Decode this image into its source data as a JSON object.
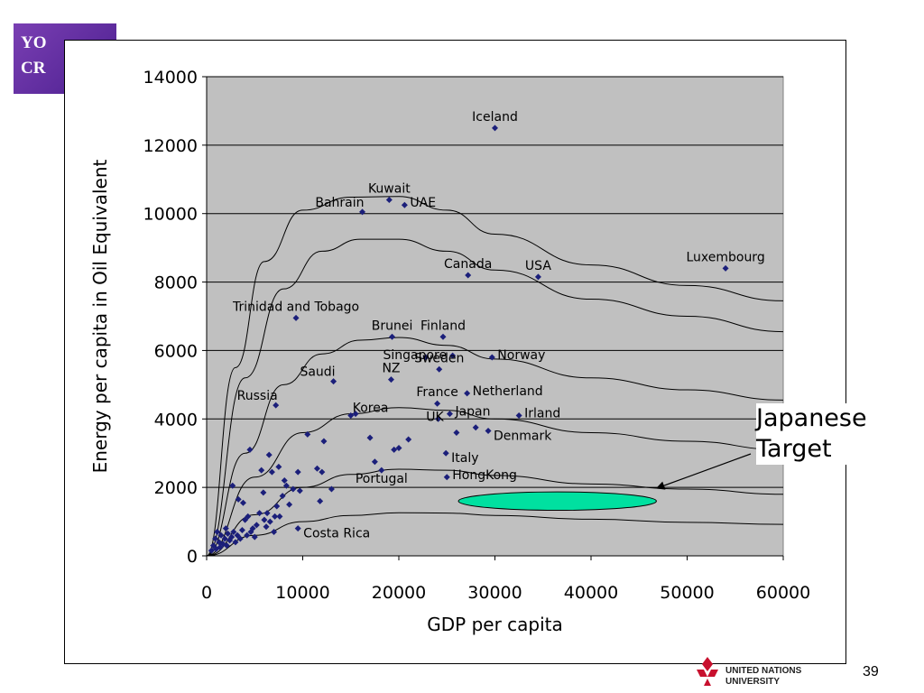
{
  "slide": {
    "badge_lines": [
      "YO",
      "CR"
    ],
    "page_number": "39",
    "logo_text_lines": [
      "UNITED NATIONS",
      "UNIVERSITY"
    ]
  },
  "callout": {
    "lines": [
      "Japanese",
      "Target"
    ]
  },
  "chart_data": {
    "type": "scatter",
    "xlabel": "GDP per capita",
    "ylabel": "Energy per capita in Oil Equivalent",
    "xlim": [
      0,
      60000
    ],
    "ylim": [
      0,
      14000
    ],
    "xticks": [
      "0",
      "10000",
      "20000",
      "30000",
      "40000",
      "50000",
      "60000"
    ],
    "yticks": [
      "0",
      "2000",
      "4000",
      "6000",
      "8000",
      "10000",
      "12000",
      "14000"
    ],
    "grid": "horizontal",
    "point_color": "#1b1f7a",
    "labeled_points": [
      {
        "label": "Iceland",
        "x": 30000,
        "y": 12500
      },
      {
        "label": "Kuwait",
        "x": 19000,
        "y": 10400
      },
      {
        "label": "Bahrain",
        "x": 16200,
        "y": 10050
      },
      {
        "label": "UAE",
        "x": 20600,
        "y": 10250
      },
      {
        "label": "Canada",
        "x": 27200,
        "y": 8200
      },
      {
        "label": "USA",
        "x": 34500,
        "y": 8150
      },
      {
        "label": "Luxembourg",
        "x": 54000,
        "y": 8400
      },
      {
        "label": "Trinidad and Tobago",
        "x": 9300,
        "y": 6950
      },
      {
        "label": "Brunei",
        "x": 19300,
        "y": 6400
      },
      {
        "label": "Finland",
        "x": 24600,
        "y": 6400
      },
      {
        "label": "Singapore",
        "x": 22800,
        "y": 5800
      },
      {
        "label": "Norway",
        "x": 29700,
        "y": 5800
      },
      {
        "label": "Saudi",
        "x": 13200,
        "y": 5100
      },
      {
        "label": "NZ",
        "x": 19200,
        "y": 5150
      },
      {
        "label": "Sweden",
        "x": 24200,
        "y": 5450
      },
      {
        "label": "Netherland",
        "x": 27100,
        "y": 4750
      },
      {
        "label": "Russia",
        "x": 7200,
        "y": 4400
      },
      {
        "label": "France",
        "x": 24000,
        "y": 4450
      },
      {
        "label": "Korea",
        "x": 15000,
        "y": 4100
      },
      {
        "label": "UK",
        "x": 24100,
        "y": 4000
      },
      {
        "label": "Japan",
        "x": 25300,
        "y": 4150
      },
      {
        "label": "Irland",
        "x": 32500,
        "y": 4100
      },
      {
        "label": "Denmark",
        "x": 29300,
        "y": 3650
      },
      {
        "label": "Italy",
        "x": 24900,
        "y": 3000
      },
      {
        "label": "Portugal",
        "x": 18200,
        "y": 2500
      },
      {
        "label": "HongKong",
        "x": 25000,
        "y": 2300
      },
      {
        "label": "Costa Rica",
        "x": 9500,
        "y": 800
      }
    ],
    "unlabeled_points": [
      [
        500,
        150
      ],
      [
        700,
        300
      ],
      [
        900,
        500
      ],
      [
        1000,
        200
      ],
      [
        1100,
        700
      ],
      [
        1300,
        400
      ],
      [
        1400,
        250
      ],
      [
        1500,
        600
      ],
      [
        1700,
        350
      ],
      [
        1900,
        500
      ],
      [
        2000,
        800
      ],
      [
        2100,
        300
      ],
      [
        2200,
        650
      ],
      [
        2400,
        450
      ],
      [
        2600,
        550
      ],
      [
        2700,
        2050
      ],
      [
        2800,
        700
      ],
      [
        3000,
        400
      ],
      [
        3200,
        600
      ],
      [
        3300,
        1650
      ],
      [
        3500,
        500
      ],
      [
        3700,
        750
      ],
      [
        3800,
        1550
      ],
      [
        4000,
        1050
      ],
      [
        4200,
        600
      ],
      [
        4300,
        1150
      ],
      [
        4500,
        3100
      ],
      [
        4600,
        700
      ],
      [
        4800,
        800
      ],
      [
        5000,
        550
      ],
      [
        5200,
        900
      ],
      [
        5500,
        1250
      ],
      [
        5700,
        2500
      ],
      [
        5900,
        1850
      ],
      [
        6000,
        1050
      ],
      [
        6200,
        850
      ],
      [
        6300,
        1250
      ],
      [
        6500,
        2950
      ],
      [
        6600,
        1000
      ],
      [
        6800,
        2450
      ],
      [
        7000,
        700
      ],
      [
        7100,
        1150
      ],
      [
        7300,
        1450
      ],
      [
        7500,
        2600
      ],
      [
        7600,
        1150
      ],
      [
        7900,
        1750
      ],
      [
        8100,
        2200
      ],
      [
        8300,
        2050
      ],
      [
        8600,
        1500
      ],
      [
        9000,
        1950
      ],
      [
        9500,
        2450
      ],
      [
        9700,
        1900
      ],
      [
        10500,
        3550
      ],
      [
        11500,
        2550
      ],
      [
        11800,
        1600
      ],
      [
        12000,
        2450
      ],
      [
        12200,
        3350
      ],
      [
        13000,
        1950
      ],
      [
        15500,
        4150
      ],
      [
        17000,
        3450
      ],
      [
        17500,
        2750
      ],
      [
        19500,
        3100
      ],
      [
        20000,
        3150
      ],
      [
        21000,
        3400
      ],
      [
        26000,
        3600
      ],
      [
        28000,
        3750
      ],
      [
        25600,
        5850
      ]
    ],
    "curves": [
      [
        [
          0,
          0
        ],
        [
          3000,
          5500
        ],
        [
          6000,
          8600
        ],
        [
          10000,
          10100
        ],
        [
          15000,
          10480
        ],
        [
          20000,
          10500
        ],
        [
          25000,
          10100
        ],
        [
          30000,
          9400
        ],
        [
          40000,
          8500
        ],
        [
          50000,
          7900
        ],
        [
          60000,
          7450
        ]
      ],
      [
        [
          0,
          0
        ],
        [
          4000,
          5200
        ],
        [
          8000,
          7800
        ],
        [
          12000,
          8900
        ],
        [
          16000,
          9250
        ],
        [
          20000,
          9250
        ],
        [
          25000,
          8900
        ],
        [
          30000,
          8350
        ],
        [
          40000,
          7500
        ],
        [
          50000,
          7000
        ],
        [
          60000,
          6550
        ]
      ],
      [
        [
          0,
          0
        ],
        [
          4000,
          3000
        ],
        [
          8000,
          5000
        ],
        [
          12000,
          5900
        ],
        [
          16000,
          6300
        ],
        [
          20000,
          6380
        ],
        [
          25000,
          6150
        ],
        [
          30000,
          5750
        ],
        [
          40000,
          5200
        ],
        [
          50000,
          4850
        ],
        [
          60000,
          4550
        ]
      ],
      [
        [
          0,
          0
        ],
        [
          5000,
          2300
        ],
        [
          10000,
          3600
        ],
        [
          15000,
          4150
        ],
        [
          20000,
          4330
        ],
        [
          25000,
          4250
        ],
        [
          30000,
          4000
        ],
        [
          40000,
          3600
        ],
        [
          50000,
          3350
        ],
        [
          60000,
          3100
        ]
      ],
      [
        [
          0,
          0
        ],
        [
          5000,
          1200
        ],
        [
          10000,
          2000
        ],
        [
          15000,
          2380
        ],
        [
          20000,
          2530
        ],
        [
          25000,
          2500
        ],
        [
          30000,
          2350
        ],
        [
          40000,
          2100
        ],
        [
          50000,
          1950
        ],
        [
          60000,
          1800
        ]
      ],
      [
        [
          0,
          0
        ],
        [
          5000,
          600
        ],
        [
          10000,
          1000
        ],
        [
          15000,
          1180
        ],
        [
          20000,
          1260
        ],
        [
          25000,
          1250
        ],
        [
          30000,
          1180
        ],
        [
          40000,
          1070
        ],
        [
          50000,
          980
        ],
        [
          60000,
          920
        ]
      ]
    ],
    "target_ellipse": {
      "cx": 36500,
      "cy": 1600,
      "rx": 10300,
      "ry": 270,
      "color": "#00e0a0"
    }
  }
}
